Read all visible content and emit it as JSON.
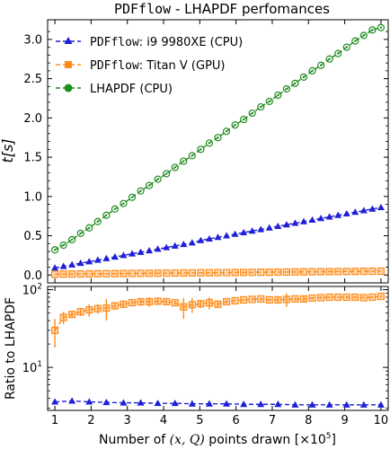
{
  "chart_data": [
    {
      "type": "line",
      "title_code": "PDFflow",
      "title_rest": " - LHAPDF perfomances",
      "ylabel": "t[s]",
      "ylim": [
        -0.1,
        3.25
      ],
      "yticks": [
        0.0,
        0.5,
        1.0,
        1.5,
        2.0,
        2.5,
        3.0
      ],
      "ytick_labels": [
        "0.0",
        "0.5",
        "1.0",
        "1.5",
        "2.0",
        "2.5",
        "3.0"
      ],
      "legend_position": "top-left",
      "x": [
        1.0,
        1.237,
        1.474,
        1.711,
        1.947,
        2.184,
        2.421,
        2.658,
        2.895,
        3.132,
        3.368,
        3.605,
        3.842,
        4.079,
        4.316,
        4.553,
        4.789,
        5.026,
        5.263,
        5.5,
        5.737,
        5.974,
        6.211,
        6.447,
        6.684,
        6.921,
        7.158,
        7.395,
        7.632,
        7.868,
        8.105,
        8.342,
        8.579,
        8.816,
        9.053,
        9.289,
        9.526,
        9.763,
        10.0
      ],
      "series": [
        {
          "name_code": "PDFflow",
          "name_rest": ": i9 9980XE (CPU)",
          "color": "#1f1fd8",
          "marker": "triangle",
          "values": [
            0.09,
            0.11,
            0.13,
            0.15,
            0.17,
            0.19,
            0.21,
            0.23,
            0.25,
            0.27,
            0.29,
            0.31,
            0.33,
            0.35,
            0.37,
            0.39,
            0.41,
            0.44,
            0.46,
            0.48,
            0.5,
            0.52,
            0.54,
            0.56,
            0.58,
            0.6,
            0.62,
            0.64,
            0.66,
            0.68,
            0.7,
            0.72,
            0.74,
            0.76,
            0.78,
            0.8,
            0.82,
            0.84,
            0.86
          ]
        },
        {
          "name_code": "PDFflow",
          "name_rest": ": Titan V (GPU)",
          "color": "#ff8c1a",
          "marker": "square",
          "values": [
            0.01,
            0.012,
            0.013,
            0.014,
            0.015,
            0.016,
            0.017,
            0.018,
            0.019,
            0.02,
            0.021,
            0.022,
            0.023,
            0.024,
            0.025,
            0.026,
            0.027,
            0.028,
            0.029,
            0.03,
            0.031,
            0.032,
            0.033,
            0.034,
            0.035,
            0.036,
            0.037,
            0.038,
            0.039,
            0.04,
            0.041,
            0.042,
            0.043,
            0.044,
            0.045,
            0.046,
            0.047,
            0.048,
            0.049
          ]
        },
        {
          "name_code": "",
          "name_rest": "LHAPDF (CPU)",
          "color": "#1f8c1f",
          "marker": "circle",
          "values": [
            0.32,
            0.38,
            0.45,
            0.53,
            0.6,
            0.68,
            0.76,
            0.84,
            0.91,
            0.99,
            1.07,
            1.14,
            1.22,
            1.29,
            1.37,
            1.45,
            1.52,
            1.6,
            1.68,
            1.75,
            1.83,
            1.91,
            1.98,
            2.06,
            2.14,
            2.21,
            2.29,
            2.37,
            2.44,
            2.52,
            2.6,
            2.67,
            2.75,
            2.82,
            2.9,
            2.98,
            3.05,
            3.12,
            3.15
          ]
        }
      ]
    },
    {
      "type": "line",
      "ylabel": "Ratio to LHAPDF",
      "yscale": "log",
      "ylim": [
        2.8,
        110
      ],
      "ytick_labels": [
        {
          "value": 10,
          "base": "10",
          "exp": "1"
        },
        {
          "value": 100,
          "base": "10",
          "exp": "2"
        }
      ],
      "xlabel_pre": "Number of ",
      "xlabel_math": "(x, Q)",
      "xlabel_mid": " points drawn ",
      "xlabel_unit": "[×10",
      "xlabel_unit_exp": "5",
      "xlabel_unit_end": "]",
      "xlim": [
        0.8,
        10.2
      ],
      "xticks": [
        1,
        2,
        3,
        4,
        5,
        6,
        7,
        8,
        9,
        10
      ],
      "xtick_labels": [
        "1",
        "2",
        "3",
        "4",
        "5",
        "6",
        "7",
        "8",
        "9",
        "10"
      ],
      "series": [
        {
          "color": "#1f1fd8",
          "marker": "triangle",
          "x": [
            1.0,
            1.474,
            1.947,
            2.421,
            2.895,
            3.368,
            3.842,
            4.316,
            4.789,
            5.263,
            5.737,
            6.211,
            6.684,
            7.158,
            7.632,
            8.105,
            8.579,
            9.053,
            9.526,
            10.0
          ],
          "values": [
            3.6,
            3.7,
            3.6,
            3.55,
            3.5,
            3.5,
            3.45,
            3.45,
            3.4,
            3.4,
            3.4,
            3.35,
            3.35,
            3.35,
            3.3,
            3.3,
            3.3,
            3.3,
            3.3,
            3.3
          ],
          "errors": [
            0.15,
            0.15,
            0.1,
            0.1,
            0.1,
            0.1,
            0.1,
            0.1,
            0.1,
            0.1,
            0.1,
            0.1,
            0.1,
            0.1,
            0.1,
            0.1,
            0.1,
            0.1,
            0.1,
            0.1
          ]
        },
        {
          "color": "#ff8c1a",
          "marker": "square",
          "x": [
            1.0,
            1.237,
            1.474,
            1.711,
            1.947,
            2.184,
            2.421,
            2.658,
            2.895,
            3.132,
            3.368,
            3.605,
            3.842,
            4.079,
            4.316,
            4.553,
            4.789,
            5.026,
            5.263,
            5.5,
            5.737,
            5.974,
            6.211,
            6.447,
            6.684,
            6.921,
            7.158,
            7.395,
            7.632,
            7.868,
            8.105,
            8.342,
            8.579,
            8.816,
            9.053,
            9.289,
            9.526,
            9.763,
            10.0
          ],
          "values": [
            30,
            44,
            48,
            52,
            55,
            57,
            58,
            62,
            65,
            68,
            70,
            70,
            71,
            70,
            68,
            60,
            64,
            66,
            68,
            65,
            70,
            72,
            74,
            75,
            76,
            74,
            74,
            75,
            76,
            76,
            78,
            79,
            80,
            80,
            80,
            80,
            79,
            80,
            82
          ],
          "errors": [
            12,
            8,
            5,
            6,
            10,
            8,
            18,
            6,
            5,
            4,
            8,
            10,
            6,
            5,
            4,
            18,
            14,
            8,
            12,
            5,
            3,
            2,
            2,
            2,
            3,
            2,
            8,
            15,
            4,
            6,
            3,
            3,
            2,
            2,
            3,
            2,
            2,
            2,
            3
          ]
        }
      ]
    }
  ]
}
